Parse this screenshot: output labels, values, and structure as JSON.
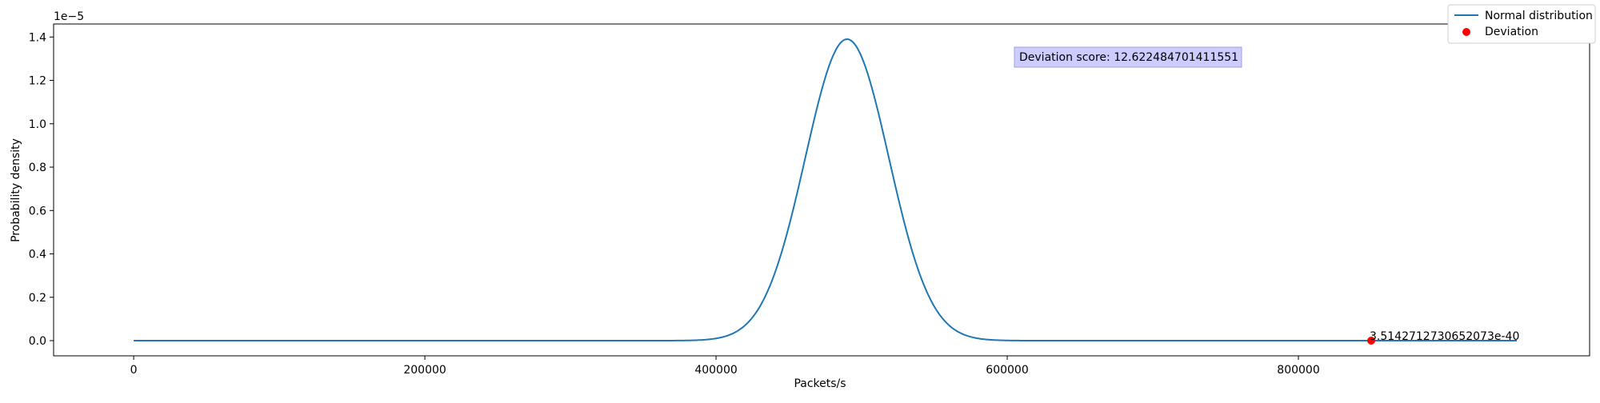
{
  "chart_data": {
    "type": "line",
    "xlabel": "Packets/s",
    "ylabel": "Probability density",
    "y_offset_label": "1e−5",
    "xlim": [
      -55000,
      1000000
    ],
    "ylim": [
      -0.07,
      1.46
    ],
    "y_units_note": "1e-5",
    "x_ticks": [
      {
        "value": 0,
        "label": "0"
      },
      {
        "value": 200000,
        "label": "200000"
      },
      {
        "value": 400000,
        "label": "400000"
      },
      {
        "value": 600000,
        "label": "600000"
      },
      {
        "value": 800000,
        "label": "800000"
      }
    ],
    "y_ticks": [
      {
        "value": 0.0,
        "label": "0.0"
      },
      {
        "value": 0.2,
        "label": "0.2"
      },
      {
        "value": 0.4,
        "label": "0.4"
      },
      {
        "value": 0.6,
        "label": "0.6"
      },
      {
        "value": 0.8,
        "label": "0.8"
      },
      {
        "value": 1.0,
        "label": "1.0"
      },
      {
        "value": 1.2,
        "label": "1.2"
      },
      {
        "value": 1.4,
        "label": "1.4"
      }
    ],
    "series": [
      {
        "name": "Normal distribution",
        "kind": "line",
        "color": "#1f77b4",
        "x": [
          0,
          100000,
          200000,
          300000,
          350000,
          380000,
          400000,
          420000,
          440000,
          460000,
          470000,
          480000,
          490000,
          500000,
          510000,
          520000,
          540000,
          560000,
          580000,
          600000,
          620000,
          650000,
          700000,
          800000,
          900000,
          950000
        ],
        "y": [
          0.0,
          0.0,
          0.0,
          0.0,
          0.003,
          0.028,
          0.066,
          0.253,
          0.656,
          1.123,
          1.283,
          1.376,
          1.39,
          1.331,
          1.186,
          0.97,
          0.523,
          0.188,
          0.043,
          0.007,
          0.001,
          0.0,
          0.0,
          0.0,
          0.0,
          0.0
        ]
      },
      {
        "name": "Deviation",
        "kind": "scatter",
        "color": "#ff0000",
        "x": [
          850000
        ],
        "y": [
          0.0
        ],
        "point_label": "3.5142712730652073e-40"
      }
    ],
    "annotation": {
      "text": "Deviation score: 12.622484701411551",
      "box_color": "#ccccff",
      "border_color": "#a0a0e0"
    },
    "legend": {
      "placement": "top-right",
      "entries": [
        "Normal distribution",
        "Deviation"
      ]
    },
    "grid": false
  }
}
